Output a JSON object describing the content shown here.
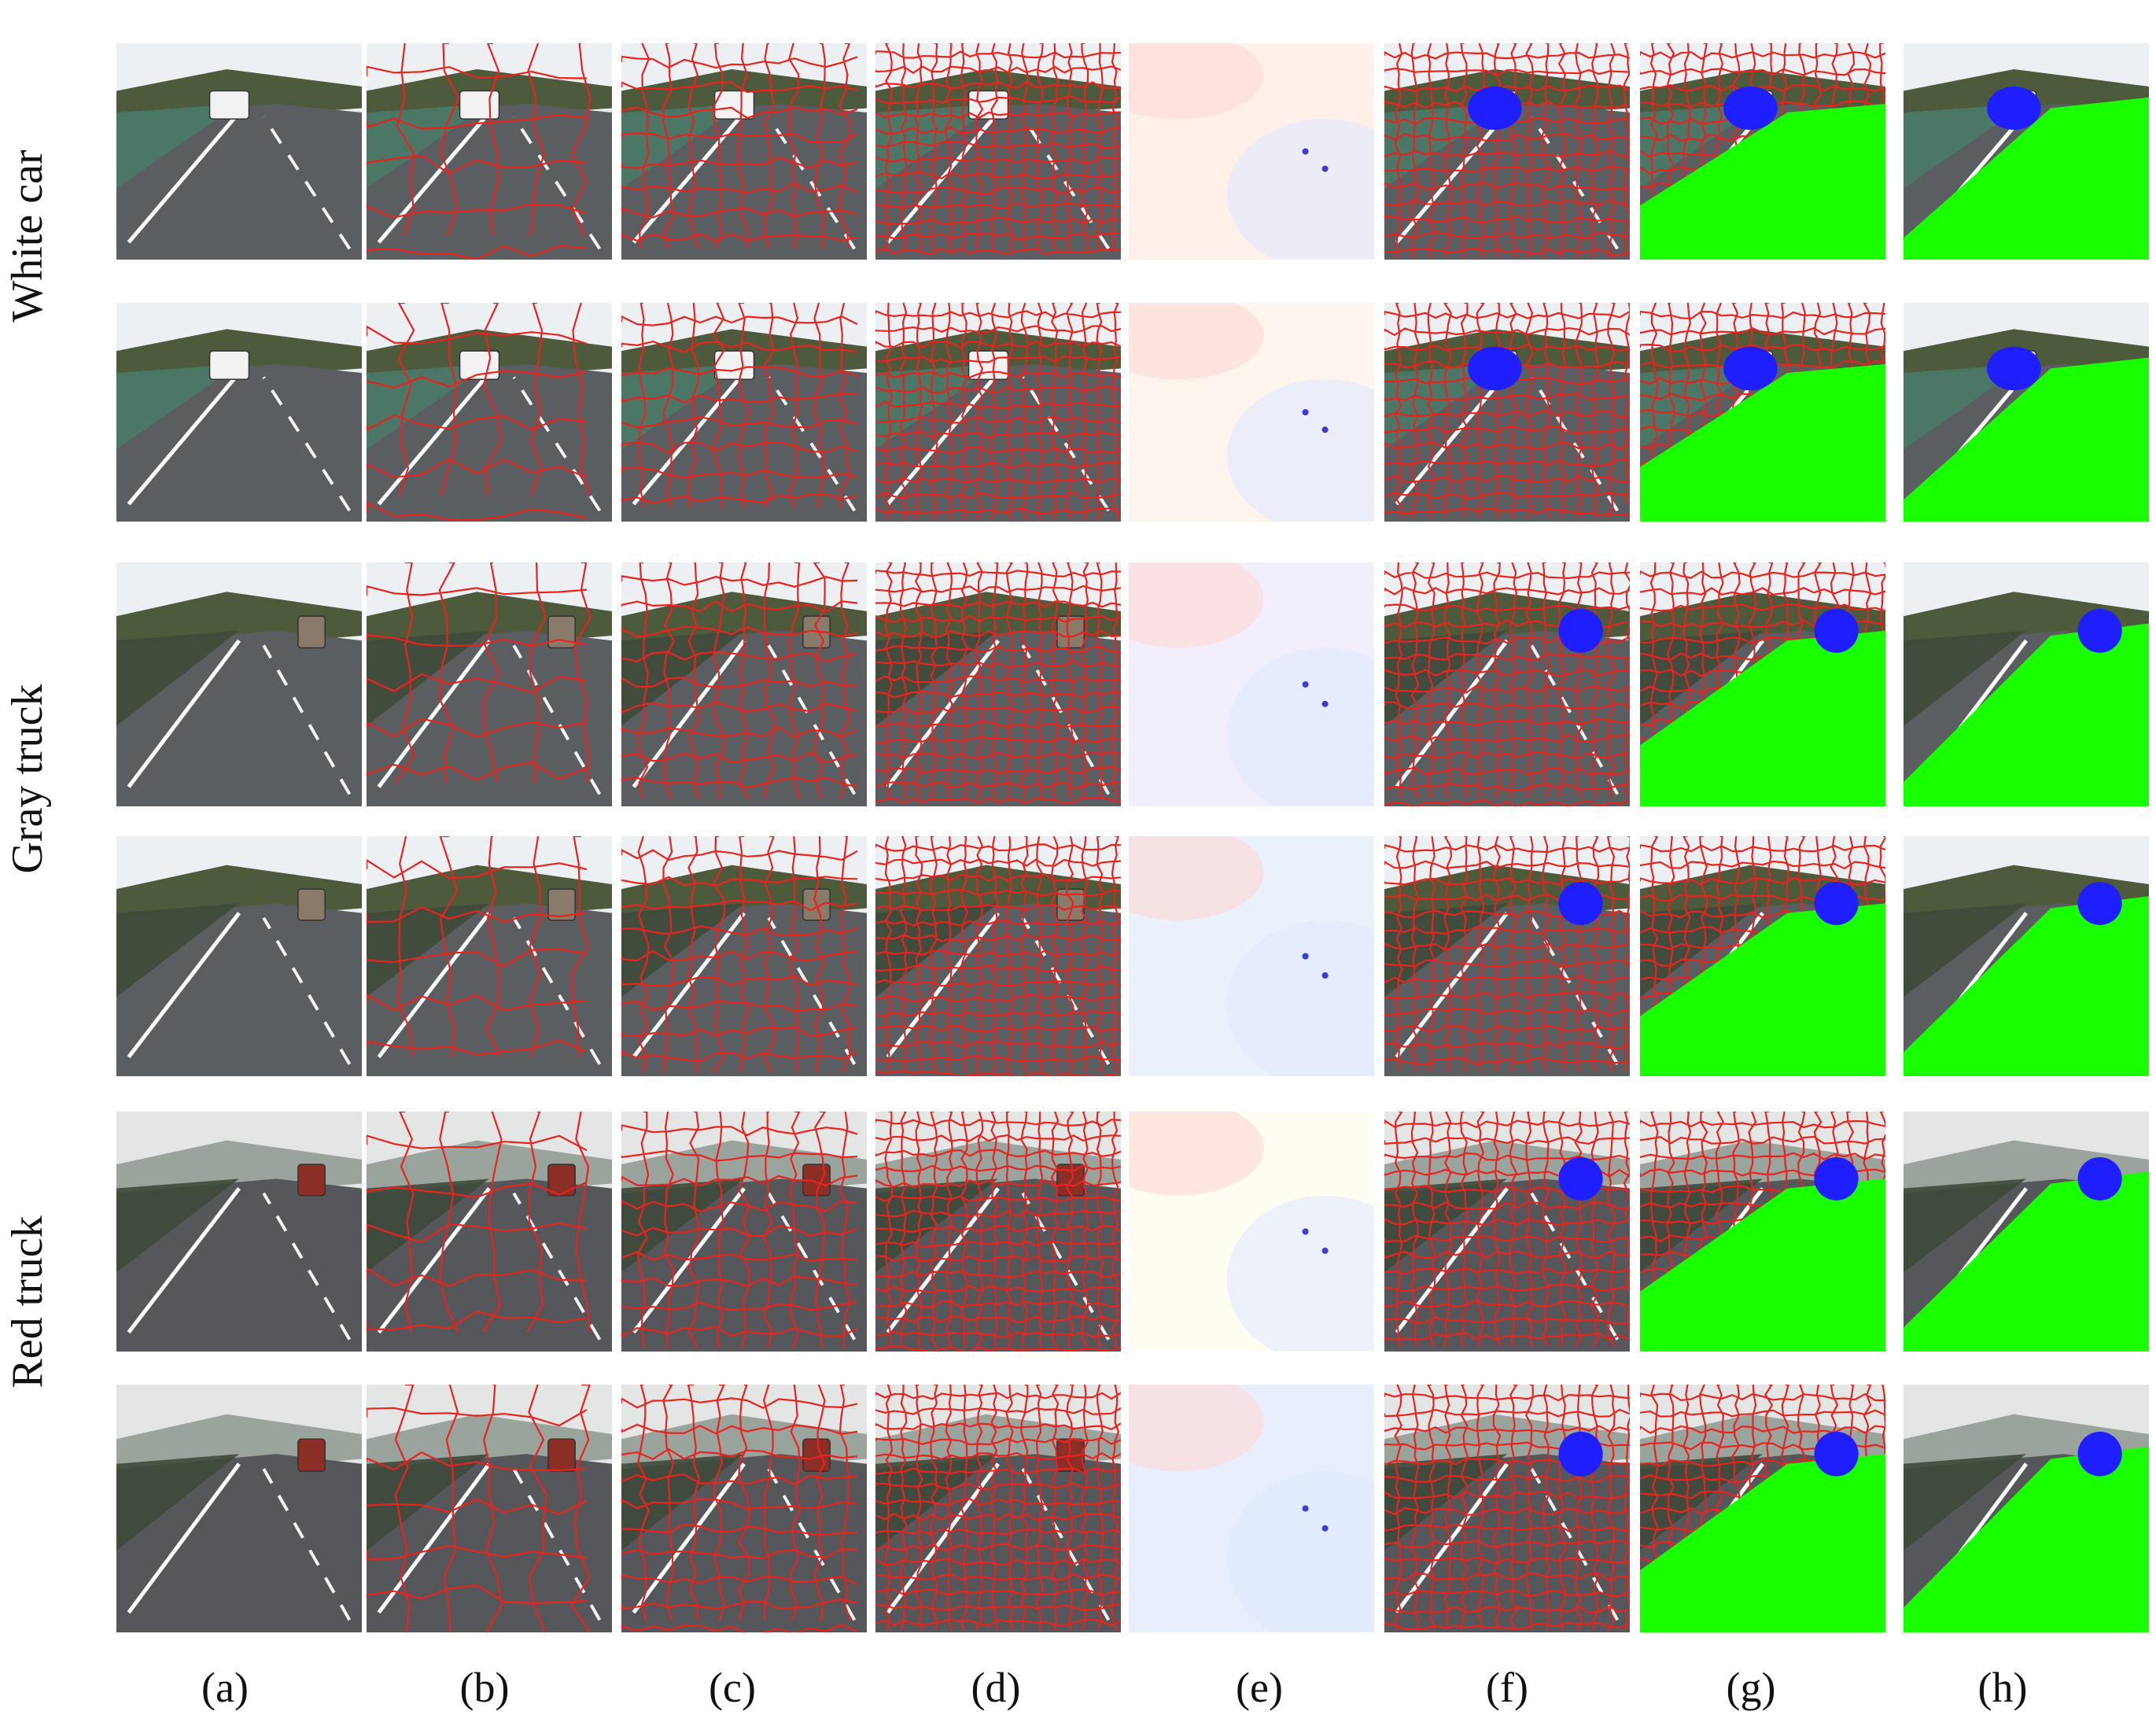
{
  "figure": {
    "row_labels": [
      "White car",
      "Gray truck",
      "Red truck"
    ],
    "column_labels": [
      "(a)",
      "(b)",
      "(c)",
      "(d)",
      "(e)",
      "(f)",
      "(g)",
      "(h)"
    ]
  },
  "palette": {
    "superpixel_boundary": "#e8231f",
    "segment_road": "#19ff00",
    "segment_vehicle": "#1e1eff",
    "white_car": "#f2f2f2",
    "gray_truck": "#8a7a6a",
    "red_truck": "#8b2e26"
  }
}
